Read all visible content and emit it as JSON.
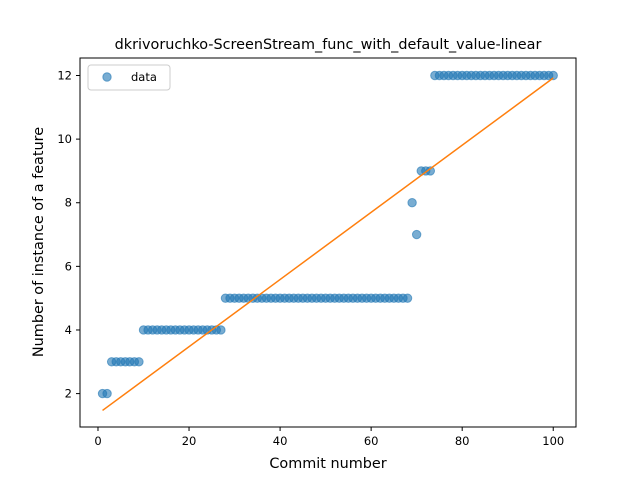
{
  "chart_data": {
    "type": "scatter",
    "title": "dkrivoruchko-ScreenStream_func_with_default_value-linear",
    "xlabel": "Commit number",
    "ylabel": "Number of instance of a feature",
    "xlim": [
      -3.95,
      105.0
    ],
    "ylim": [
      0.95,
      12.55
    ],
    "xticks": [
      0,
      20,
      40,
      60,
      80,
      100
    ],
    "yticks": [
      2,
      4,
      6,
      8,
      10,
      12
    ],
    "grid": false,
    "legend": {
      "placement": "upper-left",
      "entries": [
        "data"
      ]
    },
    "series": [
      {
        "name": "data",
        "kind": "markers",
        "color": "#1f77b4",
        "x": [
          1,
          2,
          3,
          4,
          5,
          6,
          7,
          8,
          9,
          10,
          11,
          12,
          13,
          14,
          15,
          16,
          17,
          18,
          19,
          20,
          21,
          22,
          23,
          24,
          25,
          26,
          27,
          28,
          29,
          30,
          31,
          32,
          33,
          34,
          35,
          36,
          37,
          38,
          39,
          40,
          41,
          42,
          43,
          44,
          45,
          46,
          47,
          48,
          49,
          50,
          51,
          52,
          53,
          54,
          55,
          56,
          57,
          58,
          59,
          60,
          61,
          62,
          63,
          64,
          65,
          66,
          67,
          68,
          69,
          70,
          71,
          72,
          73,
          74,
          75,
          76,
          77,
          78,
          79,
          80,
          81,
          82,
          83,
          84,
          85,
          86,
          87,
          88,
          89,
          90,
          91,
          92,
          93,
          94,
          95,
          96,
          97,
          98,
          99,
          100
        ],
        "y": [
          2,
          2,
          3,
          3,
          3,
          3,
          3,
          3,
          3,
          4,
          4,
          4,
          4,
          4,
          4,
          4,
          4,
          4,
          4,
          4,
          4,
          4,
          4,
          4,
          4,
          4,
          4,
          5,
          5,
          5,
          5,
          5,
          5,
          5,
          5,
          5,
          5,
          5,
          5,
          5,
          5,
          5,
          5,
          5,
          5,
          5,
          5,
          5,
          5,
          5,
          5,
          5,
          5,
          5,
          5,
          5,
          5,
          5,
          5,
          5,
          5,
          5,
          5,
          5,
          5,
          5,
          5,
          5,
          8,
          7,
          9,
          9,
          9,
          12,
          12,
          12,
          12,
          12,
          12,
          12,
          12,
          12,
          12,
          12,
          12,
          12,
          12,
          12,
          12,
          12,
          12,
          12,
          12,
          12,
          12,
          12,
          12,
          12,
          12,
          12
        ]
      },
      {
        "kind": "line",
        "color": "#ff7f0e",
        "x": [
          1,
          100
        ],
        "y": [
          1.47,
          11.92
        ]
      }
    ]
  }
}
